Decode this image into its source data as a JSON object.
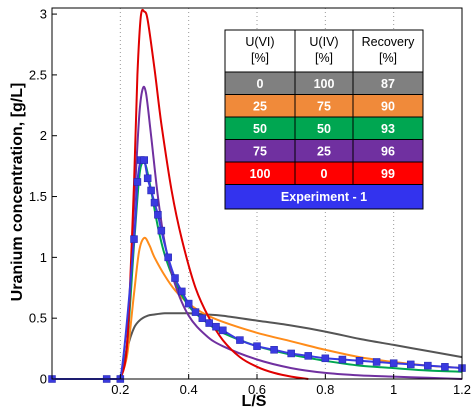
{
  "chart_data": {
    "type": "line",
    "xlabel": "L/S",
    "ylabel": "Uranium concentration, [g/L]",
    "xlim": [
      0,
      1.2
    ],
    "ylim": [
      0,
      3.05
    ],
    "xticks": [
      "0.2",
      "0.4",
      "0.6",
      "0.8",
      "1",
      "1.2"
    ],
    "yticks": [
      "0",
      "0.5",
      "1",
      "1.5",
      "2",
      "2.5",
      "3"
    ],
    "grid": "vertical dotted",
    "series": [
      {
        "color": "#555555",
        "x": [
          0.2,
          0.22,
          0.24,
          0.26,
          0.28,
          0.3,
          0.33,
          0.36,
          0.4,
          0.45,
          0.5,
          0.6,
          0.7,
          0.8,
          0.9,
          1.0,
          1.1,
          1.2
        ],
        "y": [
          0,
          0.25,
          0.42,
          0.49,
          0.52,
          0.53,
          0.54,
          0.54,
          0.54,
          0.53,
          0.52,
          0.48,
          0.44,
          0.39,
          0.33,
          0.28,
          0.23,
          0.18
        ]
      },
      {
        "color": "#ff8c1a",
        "x": [
          0.2,
          0.22,
          0.24,
          0.255,
          0.27,
          0.285,
          0.3,
          0.33,
          0.36,
          0.4,
          0.45,
          0.5,
          0.6,
          0.7,
          0.8,
          0.9,
          1.0,
          1.1,
          1.2
        ],
        "y": [
          0,
          0.2,
          0.7,
          1.05,
          1.16,
          1.1,
          1.0,
          0.85,
          0.73,
          0.62,
          0.53,
          0.47,
          0.38,
          0.31,
          0.24,
          0.18,
          0.14,
          0.11,
          0.09
        ]
      },
      {
        "color": "#00a651",
        "x": [
          0.2,
          0.22,
          0.24,
          0.255,
          0.265,
          0.275,
          0.29,
          0.31,
          0.33,
          0.36,
          0.4,
          0.45,
          0.5,
          0.6,
          0.7,
          0.8,
          0.9,
          1.0,
          1.1,
          1.2
        ],
        "y": [
          0,
          0.3,
          1.1,
          1.65,
          1.78,
          1.75,
          1.55,
          1.25,
          1.02,
          0.8,
          0.6,
          0.47,
          0.38,
          0.27,
          0.2,
          0.15,
          0.11,
          0.09,
          0.07,
          0.06
        ]
      },
      {
        "color": "#7030a0",
        "x": [
          0.2,
          0.22,
          0.24,
          0.255,
          0.265,
          0.275,
          0.29,
          0.31,
          0.33,
          0.36,
          0.4,
          0.45,
          0.5,
          0.6,
          0.7,
          0.8,
          0.9,
          1.0,
          1.1,
          1.2
        ],
        "y": [
          0,
          0.3,
          1.4,
          2.15,
          2.38,
          2.35,
          2.0,
          1.5,
          1.12,
          0.78,
          0.52,
          0.36,
          0.27,
          0.16,
          0.09,
          0.05,
          0.03,
          0.02,
          0.01,
          0.0
        ]
      },
      {
        "color": "#e00000",
        "x": [
          0.2,
          0.22,
          0.24,
          0.25,
          0.26,
          0.27,
          0.28,
          0.3,
          0.32,
          0.35,
          0.38,
          0.42,
          0.46,
          0.5,
          0.55,
          0.6,
          0.65,
          0.7,
          0.75
        ],
        "y": [
          0,
          0.3,
          1.6,
          2.5,
          2.98,
          3.02,
          2.95,
          2.55,
          2.1,
          1.55,
          1.15,
          0.75,
          0.5,
          0.32,
          0.18,
          0.1,
          0.05,
          0.02,
          0.0
        ]
      },
      {
        "color": "#3a3ae0",
        "marker": "square",
        "x": [
          0.0,
          0.16,
          0.2,
          0.24,
          0.25,
          0.26,
          0.27,
          0.28,
          0.29,
          0.3,
          0.31,
          0.32,
          0.34,
          0.36,
          0.38,
          0.4,
          0.42,
          0.44,
          0.46,
          0.48,
          0.5,
          0.55,
          0.6,
          0.65,
          0.7,
          0.75,
          0.8,
          0.85,
          0.9,
          0.95,
          1.0,
          1.05,
          1.1,
          1.15,
          1.2
        ],
        "y": [
          0,
          0,
          0,
          1.15,
          1.62,
          1.8,
          1.8,
          1.65,
          1.55,
          1.45,
          1.35,
          1.22,
          1.0,
          0.83,
          0.72,
          0.62,
          0.55,
          0.5,
          0.46,
          0.43,
          0.4,
          0.32,
          0.27,
          0.24,
          0.21,
          0.19,
          0.17,
          0.16,
          0.15,
          0.14,
          0.13,
          0.12,
          0.11,
          0.1,
          0.09
        ]
      }
    ],
    "table": {
      "headers": [
        [
          "U(VI)",
          "[%]"
        ],
        [
          "U(IV)",
          "[%]"
        ],
        [
          "Recovery",
          "[%]"
        ]
      ],
      "rows": [
        {
          "color": "#808080",
          "cells": [
            "0",
            "100",
            "87"
          ]
        },
        {
          "color": "#f08a3a",
          "cells": [
            "25",
            "75",
            "90"
          ]
        },
        {
          "color": "#00a651",
          "cells": [
            "50",
            "50",
            "93"
          ]
        },
        {
          "color": "#7030a0",
          "cells": [
            "75",
            "25",
            "96"
          ]
        },
        {
          "color": "#ff0000",
          "cells": [
            "100",
            "0",
            "99"
          ]
        }
      ],
      "experiment": {
        "color": "#3333ee",
        "label": "Experiment - 1"
      }
    }
  }
}
